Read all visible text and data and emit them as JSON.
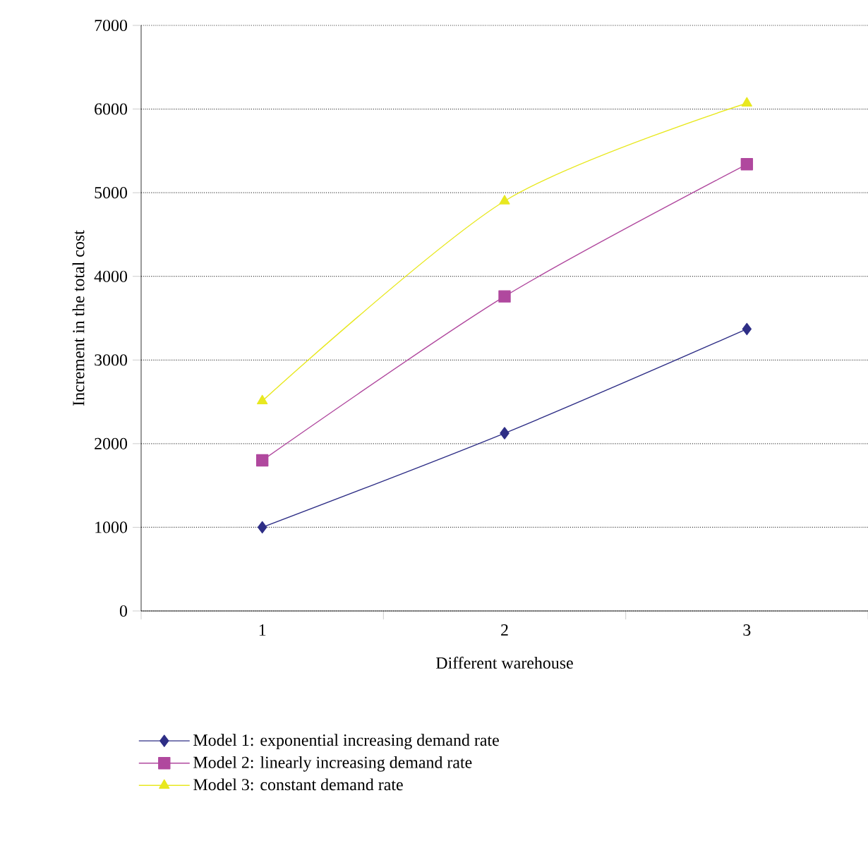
{
  "chart_data": {
    "type": "line",
    "xlabel": "Different warehouse",
    "ylabel": "Increment in the total cost",
    "categories": [
      "1",
      "2",
      "3"
    ],
    "series": [
      {
        "name": "Model 1: exponential increasing demand rate",
        "color": "#2e2e86",
        "marker": "diamond",
        "values": [
          1000,
          2125,
          3370
        ]
      },
      {
        "name": "Model 2: linearly increasing demand rate",
        "color": "#b0489e",
        "marker": "square",
        "values": [
          1800,
          3760,
          5340
        ]
      },
      {
        "name": "Model 3: constant demand rate",
        "color": "#e8e820",
        "marker": "triangle",
        "values": [
          2510,
          4900,
          6070
        ]
      }
    ],
    "ylim": [
      0,
      7000
    ],
    "yticks": [
      0,
      1000,
      2000,
      3000,
      4000,
      5000,
      6000,
      7000
    ],
    "grid": "y",
    "legend": "bottom",
    "line_style": "solid"
  }
}
